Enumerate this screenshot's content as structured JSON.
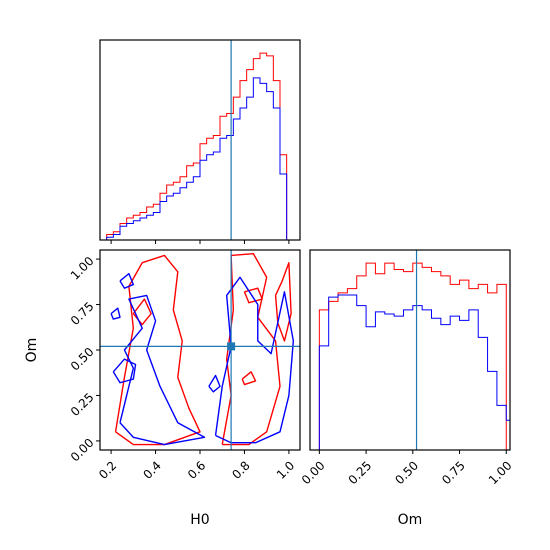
{
  "chart_data": {
    "type": "corner",
    "parameters": [
      "H0",
      "Om"
    ],
    "truths": {
      "H0": 0.74,
      "Om": 0.52
    },
    "colors": {
      "series_a": "#ff0000",
      "series_b": "#0000ff",
      "truth": "#1f77b4"
    },
    "panels": [
      {
        "id": "hist-H0",
        "type": "histogram",
        "xlim": [
          0.15,
          1.05
        ],
        "x_ticks": [
          0.2,
          0.4,
          0.6,
          0.8,
          1.0
        ],
        "y_ticks": [],
        "show_x_tick_labels": false,
        "truth_x": 0.74,
        "bin_edges": [
          0.15,
          0.18,
          0.21,
          0.24,
          0.27,
          0.3,
          0.33,
          0.36,
          0.39,
          0.42,
          0.45,
          0.48,
          0.51,
          0.54,
          0.57,
          0.6,
          0.63,
          0.66,
          0.69,
          0.72,
          0.75,
          0.78,
          0.81,
          0.84,
          0.87,
          0.9,
          0.93,
          0.96,
          0.99,
          1.02,
          1.05
        ],
        "series": [
          {
            "color_key": "series_a",
            "values": [
              0,
              2,
              3,
              6,
              8,
              9,
              10,
              12,
              13,
              17,
              20,
              21,
              23,
              27,
              28,
              35,
              37,
              38,
              45,
              46,
              52,
              58,
              62,
              66,
              68,
              67,
              58,
              31,
              0,
              0
            ]
          },
          {
            "color_key": "series_b",
            "values": [
              0,
              1,
              2,
              5,
              6,
              7,
              8,
              9,
              10,
              14,
              16,
              17,
              19,
              21,
              23,
              29,
              31,
              32,
              37,
              38,
              44,
              48,
              52,
              59,
              57,
              54,
              48,
              24,
              0,
              0
            ]
          }
        ]
      },
      {
        "id": "contour-H0-Om",
        "type": "contour",
        "xlim": [
          0.15,
          1.05
        ],
        "ylim": [
          -0.05,
          1.05
        ],
        "x_ticks": [
          0.2,
          0.4,
          0.6,
          0.8,
          1.0
        ],
        "x_tick_labels": [
          "0.2",
          "0.4",
          "0.6",
          "0.8",
          "1.0"
        ],
        "y_ticks": [
          0.0,
          0.25,
          0.5,
          0.75,
          1.0
        ],
        "y_tick_labels": [
          "0.00",
          "0.25",
          "0.50",
          "0.75",
          "1.00"
        ],
        "xlabel": "H0",
        "ylabel": "Om",
        "truth_point": [
          0.74,
          0.52
        ],
        "contours": [
          {
            "color_key": "series_a",
            "points": [
              [
                0.22,
                0.05
              ],
              [
                0.26,
                0.35
              ],
              [
                0.3,
                0.62
              ],
              [
                0.28,
                0.85
              ],
              [
                0.34,
                0.98
              ],
              [
                0.44,
                1.02
              ],
              [
                0.5,
                0.93
              ],
              [
                0.48,
                0.72
              ],
              [
                0.52,
                0.55
              ],
              [
                0.5,
                0.35
              ],
              [
                0.55,
                0.18
              ],
              [
                0.6,
                0.05
              ],
              [
                0.44,
                -0.02
              ],
              [
                0.3,
                -0.02
              ],
              [
                0.22,
                0.05
              ]
            ]
          },
          {
            "color_key": "series_a",
            "points": [
              [
                0.7,
                -0.02
              ],
              [
                0.74,
                0.25
              ],
              [
                0.72,
                0.45
              ],
              [
                0.75,
                0.72
              ],
              [
                0.74,
                1.02
              ],
              [
                0.84,
                1.03
              ],
              [
                0.9,
                0.9
              ],
              [
                0.86,
                0.68
              ],
              [
                0.94,
                0.55
              ],
              [
                0.96,
                0.3
              ],
              [
                0.9,
                0.05
              ],
              [
                0.82,
                -0.02
              ],
              [
                0.7,
                -0.02
              ]
            ]
          },
          {
            "color_key": "series_a",
            "points": [
              [
                0.3,
                0.7
              ],
              [
                0.35,
                0.78
              ],
              [
                0.38,
                0.7
              ],
              [
                0.34,
                0.64
              ],
              [
                0.3,
                0.7
              ]
            ]
          },
          {
            "color_key": "series_a",
            "points": [
              [
                0.8,
                0.82
              ],
              [
                0.86,
                0.84
              ],
              [
                0.88,
                0.78
              ],
              [
                0.82,
                0.76
              ],
              [
                0.8,
                0.82
              ]
            ]
          },
          {
            "color_key": "series_a",
            "points": [
              [
                0.79,
                0.34
              ],
              [
                0.83,
                0.38
              ],
              [
                0.85,
                0.33
              ],
              [
                0.8,
                0.31
              ],
              [
                0.79,
                0.34
              ]
            ]
          },
          {
            "color_key": "series_a",
            "points": [
              [
                0.94,
                0.8
              ],
              [
                0.97,
                0.88
              ],
              [
                1.0,
                0.98
              ],
              [
                1.01,
                0.7
              ],
              [
                0.98,
                0.55
              ],
              [
                0.95,
                0.65
              ],
              [
                0.94,
                0.8
              ]
            ]
          },
          {
            "color_key": "series_b",
            "points": [
              [
                0.24,
                0.1
              ],
              [
                0.3,
                0.4
              ],
              [
                0.26,
                0.5
              ],
              [
                0.34,
                0.62
              ],
              [
                0.28,
                0.78
              ],
              [
                0.36,
                0.8
              ],
              [
                0.4,
                0.66
              ],
              [
                0.36,
                0.5
              ],
              [
                0.42,
                0.3
              ],
              [
                0.5,
                0.1
              ],
              [
                0.62,
                0.02
              ],
              [
                0.44,
                -0.02
              ],
              [
                0.3,
                0.02
              ],
              [
                0.24,
                0.1
              ]
            ]
          },
          {
            "color_key": "series_b",
            "points": [
              [
                0.67,
                0.03
              ],
              [
                0.7,
                0.3
              ],
              [
                0.74,
                0.52
              ],
              [
                0.72,
                0.8
              ],
              [
                0.78,
                0.9
              ],
              [
                0.86,
                0.75
              ],
              [
                0.86,
                0.55
              ],
              [
                0.92,
                0.48
              ],
              [
                0.98,
                0.82
              ],
              [
                1.02,
                0.55
              ],
              [
                1.0,
                0.25
              ],
              [
                0.96,
                0.05
              ],
              [
                0.85,
                -0.01
              ],
              [
                0.74,
                -0.01
              ],
              [
                0.67,
                0.03
              ]
            ]
          },
          {
            "color_key": "series_b",
            "points": [
              [
                0.24,
                0.88
              ],
              [
                0.28,
                0.92
              ],
              [
                0.3,
                0.86
              ],
              [
                0.26,
                0.84
              ],
              [
                0.24,
                0.88
              ]
            ]
          },
          {
            "color_key": "series_b",
            "points": [
              [
                0.2,
                0.7
              ],
              [
                0.23,
                0.73
              ],
              [
                0.24,
                0.68
              ],
              [
                0.21,
                0.67
              ],
              [
                0.2,
                0.7
              ]
            ]
          },
          {
            "color_key": "series_b",
            "points": [
              [
                0.21,
                0.38
              ],
              [
                0.26,
                0.45
              ],
              [
                0.31,
                0.42
              ],
              [
                0.3,
                0.34
              ],
              [
                0.24,
                0.32
              ],
              [
                0.21,
                0.38
              ]
            ]
          },
          {
            "color_key": "series_b",
            "points": [
              [
                0.64,
                0.3
              ],
              [
                0.67,
                0.36
              ],
              [
                0.69,
                0.3
              ],
              [
                0.66,
                0.27
              ],
              [
                0.64,
                0.3
              ]
            ]
          }
        ]
      },
      {
        "id": "hist-Om",
        "type": "histogram",
        "xlim": [
          -0.05,
          1.02
        ],
        "x_ticks": [
          0.0,
          0.25,
          0.5,
          0.75,
          1.0
        ],
        "x_tick_labels": [
          "0.00",
          "0.25",
          "0.50",
          "0.75",
          "1.00"
        ],
        "y_ticks": [],
        "xlabel": "Om",
        "truth_x": 0.52,
        "bin_edges": [
          -0.05,
          0.0,
          0.05,
          0.1,
          0.15,
          0.2,
          0.25,
          0.3,
          0.35,
          0.4,
          0.45,
          0.5,
          0.55,
          0.6,
          0.65,
          0.7,
          0.75,
          0.8,
          0.85,
          0.9,
          0.95,
          1.0,
          1.02
        ],
        "series": [
          {
            "color_key": "series_a",
            "values": [
              0,
              66,
              70,
              74,
              76,
              82,
              88,
              83,
              88,
              85,
              84,
              88,
              86,
              84,
              82,
              78,
              80,
              76,
              78,
              74,
              78,
              0
            ]
          },
          {
            "color_key": "series_b",
            "values": [
              0,
              49,
              72,
              73,
              73,
              68,
              58,
              65,
              64,
              63,
              66,
              68,
              66,
              62,
              59,
              63,
              61,
              66,
              53,
              37,
              21,
              14
            ]
          }
        ]
      }
    ]
  }
}
